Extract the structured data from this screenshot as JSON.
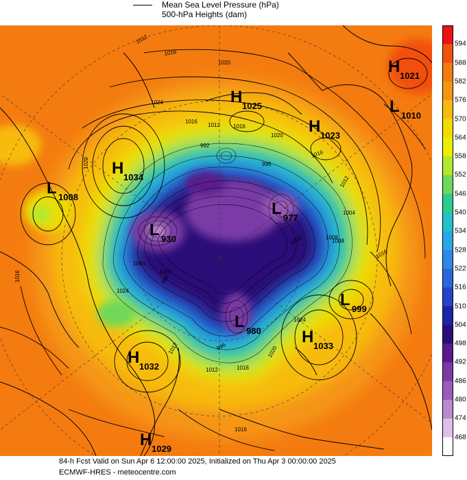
{
  "legend": {
    "line1": "Mean Sea Level Pressure (hPa)",
    "line2": "500-hPa Heights (dam)"
  },
  "colorbar": {
    "levels": [
      "594",
      "588",
      "582",
      "576",
      "570",
      "564",
      "558",
      "552",
      "546",
      "540",
      "534",
      "528",
      "522",
      "516",
      "510",
      "504",
      "498",
      "492",
      "486",
      "480",
      "474",
      "468"
    ],
    "colors": [
      "#ee1111",
      "#f2500e",
      "#f47b10",
      "#f59512",
      "#f7bb10",
      "#eedd00",
      "#e8f000",
      "#b4e82a",
      "#6fd85a",
      "#2ecb8e",
      "#1fc3c8",
      "#26a8e6",
      "#2f88e6",
      "#2c66dc",
      "#2445c8",
      "#1b25a8",
      "#2a0f78",
      "#5a1a8e",
      "#7a3aa6",
      "#9a5cba",
      "#bc88d0",
      "#ddc0e8",
      "#ffffff"
    ]
  },
  "centers": [
    {
      "type": "H",
      "value": "1021"
    },
    {
      "type": "H",
      "value": "1025"
    },
    {
      "type": "L",
      "value": "1010"
    },
    {
      "type": "H",
      "value": "1023"
    },
    {
      "type": "H",
      "value": "1034"
    },
    {
      "type": "L",
      "value": "1008"
    },
    {
      "type": "L",
      "value": "977"
    },
    {
      "type": "L",
      "value": "930"
    },
    {
      "type": "L",
      "value": "999"
    },
    {
      "type": "L",
      "value": "980"
    },
    {
      "type": "H",
      "value": "1033"
    },
    {
      "type": "H",
      "value": "1032"
    },
    {
      "type": "H",
      "value": "1029"
    }
  ],
  "isobar_labels": [
    "1012",
    "1016",
    "1020",
    "1024",
    "1016",
    "1012",
    "1020",
    "1016",
    "1012",
    "1004",
    "1008",
    "1016",
    "992",
    "996",
    "1024",
    "1012",
    "1016",
    "1004",
    "1000",
    "1024",
    "1016",
    "1020",
    "1012",
    "992",
    "996",
    "1000",
    "1016",
    "1008",
    "1020",
    "1016"
  ],
  "footer": {
    "line1": "84-h Fcst Valid on Sun Apr  6 12:00:00 2025, Initialized on Thu Apr  3 00:00:00 2025",
    "line2": "ECMWF-HRES  -  meteocentre.com"
  }
}
